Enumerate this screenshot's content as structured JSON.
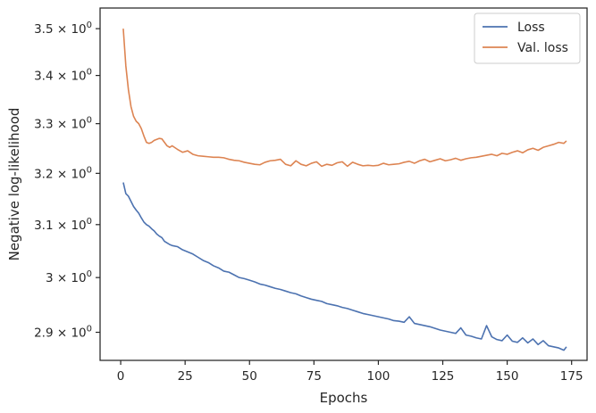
{
  "chart_data": {
    "type": "line",
    "xlabel": "Epochs",
    "ylabel": "Negative log-likelihood",
    "xlim": [
      -8,
      181
    ],
    "ylim": [
      2.85,
      3.545
    ],
    "yscale": "log",
    "grid": false,
    "legend_position": "top-right",
    "x_ticks": [
      0,
      25,
      50,
      75,
      100,
      125,
      150,
      175
    ],
    "x_tick_labels": [
      "0",
      "25",
      "50",
      "75",
      "100",
      "125",
      "150",
      "175"
    ],
    "y_ticks": [
      {
        "value": 2.9,
        "mantissa": "2.9"
      },
      {
        "value": 3.0,
        "mantissa": "3"
      },
      {
        "value": 3.1,
        "mantissa": "3.1"
      },
      {
        "value": 3.2,
        "mantissa": "3.2"
      },
      {
        "value": 3.3,
        "mantissa": "3.3"
      },
      {
        "value": 3.4,
        "mantissa": "3.4"
      },
      {
        "value": 3.5,
        "mantissa": "3.5"
      }
    ],
    "y_tick_suffix": "× 10",
    "y_tick_exponent": "0",
    "series": [
      {
        "name": "Loss",
        "color": "#4c72b0",
        "x": [
          1,
          2,
          3,
          4,
          5,
          6,
          7,
          8,
          9,
          10,
          11,
          12,
          13,
          14,
          15,
          16,
          17,
          18,
          19,
          20,
          22,
          24,
          26,
          28,
          30,
          32,
          34,
          36,
          38,
          40,
          42,
          44,
          46,
          48,
          50,
          52,
          54,
          56,
          58,
          60,
          62,
          64,
          66,
          68,
          70,
          72,
          74,
          76,
          78,
          80,
          82,
          84,
          86,
          88,
          90,
          92,
          94,
          96,
          98,
          100,
          102,
          104,
          106,
          108,
          110,
          112,
          114,
          116,
          118,
          120,
          122,
          124,
          126,
          128,
          130,
          132,
          134,
          136,
          138,
          140,
          142,
          144,
          146,
          148,
          150,
          152,
          154,
          156,
          158,
          160,
          162,
          164,
          166,
          168,
          170,
          172,
          173
        ],
        "y": [
          3.182,
          3.16,
          3.155,
          3.145,
          3.135,
          3.128,
          3.122,
          3.113,
          3.105,
          3.1,
          3.097,
          3.092,
          3.088,
          3.082,
          3.078,
          3.075,
          3.068,
          3.065,
          3.062,
          3.06,
          3.058,
          3.052,
          3.048,
          3.044,
          3.038,
          3.032,
          3.028,
          3.022,
          3.018,
          3.012,
          3.01,
          3.005,
          3.0,
          2.998,
          2.995,
          2.992,
          2.988,
          2.986,
          2.983,
          2.98,
          2.978,
          2.975,
          2.972,
          2.97,
          2.966,
          2.963,
          2.96,
          2.958,
          2.956,
          2.952,
          2.95,
          2.948,
          2.945,
          2.943,
          2.94,
          2.937,
          2.934,
          2.932,
          2.93,
          2.928,
          2.926,
          2.924,
          2.921,
          2.92,
          2.918,
          2.928,
          2.916,
          2.914,
          2.912,
          2.91,
          2.907,
          2.904,
          2.902,
          2.9,
          2.898,
          2.908,
          2.895,
          2.893,
          2.89,
          2.888,
          2.912,
          2.892,
          2.887,
          2.885,
          2.895,
          2.884,
          2.882,
          2.89,
          2.881,
          2.888,
          2.878,
          2.885,
          2.876,
          2.874,
          2.872,
          2.868,
          2.874
        ]
      },
      {
        "name": "Val. loss",
        "color": "#dd8452",
        "x": [
          1,
          2,
          3,
          4,
          5,
          6,
          7,
          8,
          9,
          10,
          11,
          12,
          13,
          14,
          15,
          16,
          17,
          18,
          19,
          20,
          22,
          24,
          26,
          28,
          30,
          32,
          34,
          36,
          38,
          40,
          42,
          44,
          46,
          48,
          50,
          52,
          54,
          56,
          58,
          60,
          62,
          64,
          66,
          68,
          70,
          72,
          74,
          76,
          78,
          80,
          82,
          84,
          86,
          88,
          90,
          92,
          94,
          96,
          98,
          100,
          102,
          104,
          106,
          108,
          110,
          112,
          114,
          116,
          118,
          120,
          122,
          124,
          126,
          128,
          130,
          132,
          134,
          136,
          138,
          140,
          142,
          144,
          146,
          148,
          150,
          152,
          154,
          156,
          158,
          160,
          162,
          164,
          166,
          168,
          170,
          172,
          173
        ],
        "y": [
          3.5,
          3.42,
          3.37,
          3.335,
          3.315,
          3.305,
          3.3,
          3.29,
          3.275,
          3.262,
          3.26,
          3.262,
          3.266,
          3.268,
          3.27,
          3.269,
          3.262,
          3.255,
          3.252,
          3.255,
          3.248,
          3.242,
          3.245,
          3.238,
          3.235,
          3.234,
          3.233,
          3.232,
          3.232,
          3.231,
          3.228,
          3.226,
          3.225,
          3.222,
          3.22,
          3.218,
          3.217,
          3.222,
          3.225,
          3.226,
          3.228,
          3.218,
          3.215,
          3.225,
          3.218,
          3.215,
          3.22,
          3.223,
          3.214,
          3.218,
          3.216,
          3.221,
          3.223,
          3.214,
          3.222,
          3.218,
          3.215,
          3.216,
          3.215,
          3.216,
          3.22,
          3.217,
          3.218,
          3.219,
          3.222,
          3.224,
          3.22,
          3.225,
          3.228,
          3.223,
          3.226,
          3.229,
          3.225,
          3.227,
          3.23,
          3.226,
          3.229,
          3.231,
          3.232,
          3.234,
          3.236,
          3.238,
          3.235,
          3.24,
          3.238,
          3.242,
          3.245,
          3.241,
          3.247,
          3.25,
          3.246,
          3.252,
          3.255,
          3.258,
          3.262,
          3.26,
          3.265
        ]
      }
    ]
  }
}
